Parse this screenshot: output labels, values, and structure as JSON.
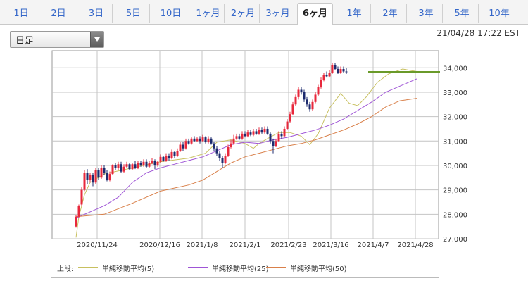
{
  "tabs": [
    {
      "label": "1日",
      "active": false
    },
    {
      "label": "2日",
      "active": false
    },
    {
      "label": "3日",
      "active": false
    },
    {
      "label": "5日",
      "active": false
    },
    {
      "label": "10日",
      "active": false
    },
    {
      "label": "1ヶ月",
      "active": false
    },
    {
      "label": "2ヶ月",
      "active": false
    },
    {
      "label": "3ヶ月",
      "active": false
    },
    {
      "label": "6ヶ月",
      "active": true
    },
    {
      "label": "1年",
      "active": false
    },
    {
      "label": "2年",
      "active": false
    },
    {
      "label": "3年",
      "active": false
    },
    {
      "label": "5年",
      "active": false
    },
    {
      "label": "10年",
      "active": false
    }
  ],
  "period_select": {
    "value": "日足"
  },
  "timestamp": "21/04/28 17:22 EST",
  "legend": {
    "title": "上段:",
    "items": [
      {
        "label": "単純移動平均(5)",
        "color": "#c8c060"
      },
      {
        "label": "単純移動平均(25)",
        "color": "#9f55d6"
      },
      {
        "label": "単純移動平均(50)",
        "color": "#d9804a"
      }
    ]
  },
  "colors": {
    "up": "#e8283c",
    "down": "#1d2b6e",
    "grid": "#c4c4c4",
    "price_line": "#6a9a2a"
  },
  "chart_data": {
    "type": "candlestick",
    "y_ticks": [
      "34,000",
      "33,000",
      "32,000",
      "31,000",
      "30,000",
      "29,000",
      "28,000",
      "27,000"
    ],
    "ylim": [
      27000,
      34700
    ],
    "x_ticks": [
      "2020/11/24",
      "2020/12/16",
      "2021/1/8",
      "2021/2/1",
      "2021/2/23",
      "2021/3/16",
      "2021/4/7",
      "2021/4/28"
    ],
    "current_price": 33820,
    "ma_series": [
      {
        "name": "単純移動平均(5)",
        "color": "#c8c060",
        "points": [
          [
            0,
            27050
          ],
          [
            1,
            27900
          ],
          [
            3,
            28800
          ],
          [
            5,
            29300
          ],
          [
            10,
            29650
          ],
          [
            20,
            29900
          ],
          [
            30,
            30150
          ],
          [
            40,
            30300
          ],
          [
            46,
            30500
          ],
          [
            50,
            30950
          ],
          [
            55,
            31050
          ],
          [
            60,
            30900
          ],
          [
            63,
            30700
          ],
          [
            65,
            30900
          ],
          [
            68,
            31100
          ],
          [
            72,
            31350
          ],
          [
            76,
            31350
          ],
          [
            80,
            31200
          ],
          [
            83,
            30850
          ],
          [
            86,
            31300
          ],
          [
            90,
            32350
          ],
          [
            94,
            32950
          ],
          [
            97,
            32550
          ],
          [
            100,
            32450
          ],
          [
            103,
            32800
          ],
          [
            107,
            33400
          ],
          [
            111,
            33750
          ],
          [
            116,
            33950
          ],
          [
            121,
            33850
          ]
        ]
      },
      {
        "name": "単純移動平均(25)",
        "color": "#9f55d6",
        "points": [
          [
            0,
            27850
          ],
          [
            5,
            28100
          ],
          [
            10,
            28350
          ],
          [
            15,
            28700
          ],
          [
            20,
            29300
          ],
          [
            25,
            29700
          ],
          [
            30,
            29900
          ],
          [
            35,
            30050
          ],
          [
            40,
            30200
          ],
          [
            45,
            30350
          ],
          [
            50,
            30600
          ],
          [
            55,
            30850
          ],
          [
            60,
            30950
          ],
          [
            65,
            30900
          ],
          [
            70,
            31050
          ],
          [
            75,
            31150
          ],
          [
            80,
            31300
          ],
          [
            85,
            31450
          ],
          [
            90,
            31650
          ],
          [
            95,
            31900
          ],
          [
            100,
            32250
          ],
          [
            105,
            32600
          ],
          [
            110,
            33000
          ],
          [
            115,
            33250
          ],
          [
            121,
            33550
          ]
        ]
      },
      {
        "name": "単純移動平均(50)",
        "color": "#d9804a",
        "points": [
          [
            0,
            27900
          ],
          [
            10,
            28000
          ],
          [
            20,
            28450
          ],
          [
            30,
            28950
          ],
          [
            40,
            29200
          ],
          [
            45,
            29400
          ],
          [
            50,
            29750
          ],
          [
            55,
            30100
          ],
          [
            60,
            30350
          ],
          [
            65,
            30500
          ],
          [
            70,
            30650
          ],
          [
            75,
            30800
          ],
          [
            80,
            30900
          ],
          [
            85,
            31050
          ],
          [
            90,
            31250
          ],
          [
            95,
            31450
          ],
          [
            100,
            31700
          ],
          [
            105,
            32000
          ],
          [
            110,
            32400
          ],
          [
            115,
            32650
          ],
          [
            121,
            32750
          ]
        ]
      }
    ],
    "candles": [
      [
        27500,
        27900,
        27450,
        27950
      ],
      [
        27900,
        28350,
        27850,
        28400
      ],
      [
        28400,
        29000,
        28350,
        29100
      ],
      [
        29000,
        29700,
        28950,
        29800
      ],
      [
        29700,
        29400,
        29250,
        29850
      ],
      [
        29400,
        29600,
        29300,
        29700
      ],
      [
        29600,
        29300,
        29150,
        29700
      ],
      [
        29300,
        29800,
        29250,
        29900
      ],
      [
        29800,
        29500,
        29400,
        29900
      ],
      [
        29500,
        29900,
        29450,
        30000
      ],
      [
        29900,
        29700,
        29600,
        30000
      ],
      [
        29700,
        29400,
        29350,
        29800
      ],
      [
        29400,
        29650,
        29350,
        29750
      ],
      [
        29650,
        30000,
        29600,
        30050
      ],
      [
        30000,
        29900,
        29800,
        30100
      ],
      [
        29900,
        30050,
        29800,
        30150
      ],
      [
        30050,
        29750,
        29700,
        30150
      ],
      [
        29750,
        29950,
        29700,
        30050
      ],
      [
        29950,
        30050,
        29900,
        30150
      ],
      [
        30050,
        29850,
        29800,
        30100
      ],
      [
        29850,
        30050,
        29800,
        30100
      ],
      [
        30050,
        29900,
        29850,
        30200
      ],
      [
        29900,
        30100,
        29850,
        30200
      ],
      [
        30100,
        30000,
        29950,
        30200
      ],
      [
        30000,
        30150,
        29950,
        30250
      ],
      [
        30150,
        29950,
        29900,
        30250
      ],
      [
        29950,
        30100,
        29900,
        30200
      ],
      [
        30100,
        30200,
        30050,
        30300
      ],
      [
        30200,
        30000,
        29850,
        30250
      ],
      [
        30000,
        30150,
        29950,
        30200
      ],
      [
        30150,
        30350,
        30100,
        30450
      ],
      [
        30350,
        30200,
        30150,
        30400
      ],
      [
        30200,
        30400,
        30150,
        30500
      ],
      [
        30400,
        30300,
        30200,
        30500
      ],
      [
        30300,
        30550,
        30250,
        30650
      ],
      [
        30550,
        30400,
        30300,
        30600
      ],
      [
        30400,
        30600,
        30350,
        30700
      ],
      [
        30600,
        30850,
        30550,
        30950
      ],
      [
        30850,
        30700,
        30600,
        30950
      ],
      [
        30700,
        31000,
        30650,
        31100
      ],
      [
        31000,
        30900,
        30850,
        31100
      ],
      [
        30900,
        31100,
        30850,
        31150
      ],
      [
        31100,
        31000,
        30950,
        31200
      ],
      [
        31000,
        31100,
        30950,
        31150
      ],
      [
        31100,
        31000,
        30900,
        31200
      ],
      [
        31000,
        31150,
        30950,
        31250
      ],
      [
        31150,
        30950,
        30900,
        31200
      ],
      [
        30950,
        31100,
        30900,
        31200
      ],
      [
        31100,
        30900,
        30850,
        31150
      ],
      [
        30900,
        30700,
        30600,
        30950
      ],
      [
        30700,
        30500,
        30400,
        30800
      ],
      [
        30500,
        30300,
        30200,
        30600
      ],
      [
        30300,
        30100,
        29900,
        30400
      ],
      [
        30100,
        30400,
        30050,
        30500
      ],
      [
        30400,
        30750,
        30350,
        30850
      ],
      [
        30750,
        30900,
        30700,
        31050
      ],
      [
        30900,
        31100,
        30850,
        31250
      ],
      [
        31100,
        31200,
        31050,
        31300
      ],
      [
        31200,
        31100,
        31050,
        31300
      ],
      [
        31100,
        31300,
        31050,
        31400
      ],
      [
        31300,
        31200,
        31150,
        31400
      ],
      [
        31200,
        31350,
        31150,
        31450
      ],
      [
        31350,
        31250,
        31200,
        31450
      ],
      [
        31250,
        31400,
        31200,
        31500
      ],
      [
        31400,
        31300,
        31250,
        31500
      ],
      [
        31300,
        31450,
        31250,
        31550
      ],
      [
        31450,
        31350,
        31300,
        31550
      ],
      [
        31350,
        31500,
        31300,
        31600
      ],
      [
        31500,
        31300,
        31250,
        31600
      ],
      [
        31300,
        31000,
        30900,
        31350
      ],
      [
        31000,
        30800,
        30500,
        31100
      ],
      [
        30800,
        31000,
        30750,
        31100
      ],
      [
        31000,
        31300,
        30950,
        31400
      ],
      [
        31300,
        31200,
        31100,
        31400
      ],
      [
        31200,
        31500,
        31150,
        31600
      ],
      [
        31500,
        31800,
        31450,
        31900
      ],
      [
        31800,
        32100,
        31750,
        32200
      ],
      [
        32100,
        32500,
        32050,
        32600
      ],
      [
        32500,
        32800,
        32450,
        32900
      ],
      [
        32800,
        33100,
        32700,
        33200
      ],
      [
        33100,
        33000,
        32900,
        33200
      ],
      [
        33000,
        32700,
        32600,
        33100
      ],
      [
        32700,
        32500,
        32400,
        32800
      ],
      [
        32500,
        32300,
        32200,
        32600
      ],
      [
        32300,
        32600,
        32250,
        32700
      ],
      [
        32600,
        32900,
        32550,
        33000
      ],
      [
        32900,
        33200,
        32850,
        33300
      ],
      [
        33200,
        33500,
        33150,
        33600
      ],
      [
        33500,
        33700,
        33450,
        33800
      ],
      [
        33700,
        33650,
        33600,
        33850
      ],
      [
        33650,
        33800,
        33600,
        33900
      ],
      [
        33800,
        34100,
        33750,
        34200
      ],
      [
        34100,
        33950,
        33900,
        34200
      ],
      [
        33950,
        33800,
        33750,
        34050
      ],
      [
        33800,
        33950,
        33750,
        34050
      ],
      [
        33950,
        33850,
        33800,
        34050
      ],
      [
        33850,
        33820,
        33750,
        34000
      ]
    ]
  }
}
